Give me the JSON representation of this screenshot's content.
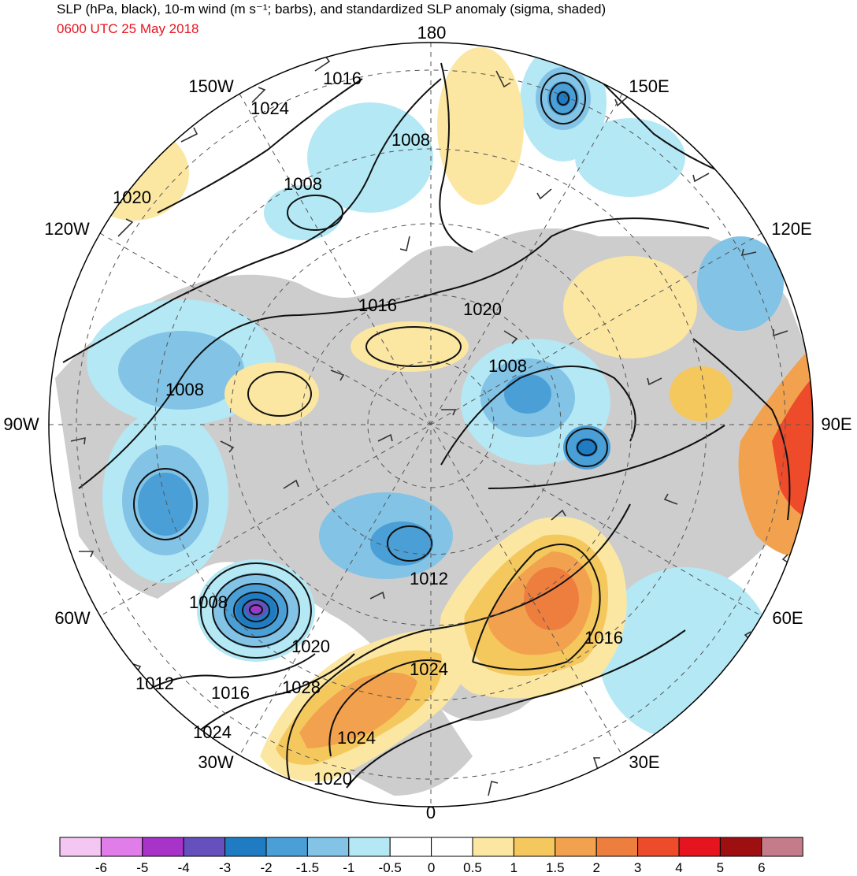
{
  "title": "SLP (hPa, black), 10-m wind (m s⁻¹; barbs), and standardized SLP anomaly (sigma, shaded)",
  "valid_time": "0600 UTC 25 May 2018",
  "longitude_labels": {
    "top": "180",
    "bottom": "0",
    "left": "90W",
    "right": "90E",
    "upper_left": "150W",
    "upper_right": "150E",
    "mid_left": "120W",
    "mid_right": "120E",
    "lower_left": "60W",
    "lower_right": "60E",
    "bottom_left": "30W",
    "bottom_right": "30E"
  },
  "isobar_labels": [
    "1016",
    "1024",
    "1008",
    "1020",
    "1008",
    "1016",
    "1020",
    "1008",
    "1008",
    "1012",
    "1020",
    "1024",
    "1016",
    "1012",
    "1016",
    "1028",
    "1024",
    "1024",
    "1020"
  ],
  "colorbar": {
    "colors": [
      "#f4c6f2",
      "#e07de9",
      "#a733c8",
      "#6650be",
      "#1f7cc2",
      "#4a9fd6",
      "#82c3e6",
      "#b3e8f4",
      "#ffffff",
      "#ffffff",
      "#fbe7a1",
      "#f5c85d",
      "#f2a24e",
      "#ee7e3e",
      "#ee4b2b",
      "#e5141e",
      "#9e0f12",
      "#c47b8a"
    ],
    "ticks": [
      "-6",
      "-5",
      "-4",
      "-3",
      "-2",
      "-1.5",
      "-1",
      "-0.5",
      "0",
      "0.5",
      "1",
      "1.5",
      "2",
      "3",
      "4",
      "5",
      "6"
    ]
  },
  "colors": {
    "land": "#cdcdcd",
    "time_text": "#e8141e"
  }
}
